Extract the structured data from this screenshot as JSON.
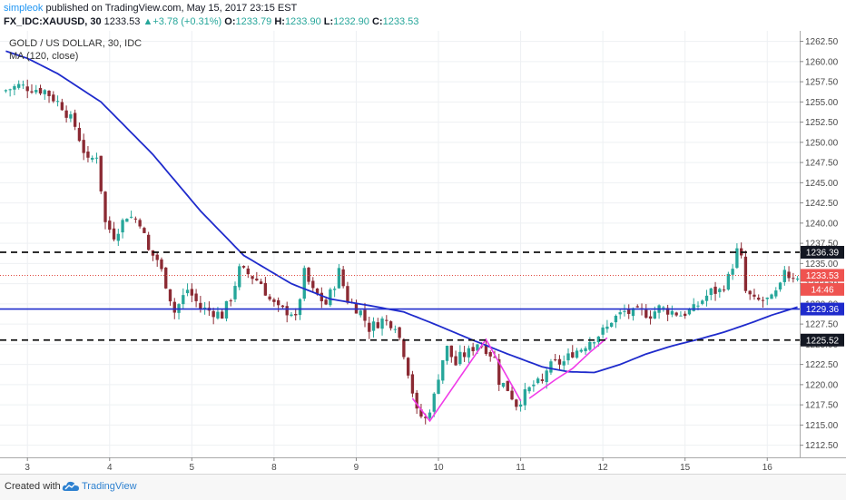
{
  "header": {
    "author": "simpleok",
    "published_text": "published on TradingView.com, May 15, 2017 23:15 EST",
    "symbol": "FX_IDC:XAUUSD, 30",
    "last": "1233.53",
    "change": "+3.78 (+0.31%)",
    "o_label": "O:",
    "o_value": "1233.79",
    "h_label": "H:",
    "h_value": "1233.90",
    "l_label": "L:",
    "l_value": "1232.90",
    "c_label": "C:",
    "c_value": "1233.53"
  },
  "footer": {
    "created_label": "Created with",
    "brand": "TradingView"
  },
  "colors": {
    "up": "#26a69a",
    "down": "#8b2a33",
    "ma": "#1f2bcc",
    "pattern": "#f03ce8",
    "level_price": "#e04a3f",
    "level_pct": "#ef5350",
    "tag_dark": "#131722",
    "tag_blue": "#1f2bcc"
  },
  "chart_data": {
    "type": "candlestick",
    "title": "GOLD / US DOLLAR, 30, IDC",
    "indicator": "MA (120, close)",
    "ylim": [
      1211,
      1263.8
    ],
    "x_ticks": [
      "3",
      "4",
      "5",
      "8",
      "9",
      "10",
      "11",
      "12",
      "15",
      "16"
    ],
    "y_ticks": [
      "1262.50",
      "1260.00",
      "1257.50",
      "1255.00",
      "1252.50",
      "1250.00",
      "1247.50",
      "1245.00",
      "1242.50",
      "1240.00",
      "1237.50",
      "1235.00",
      "1232.50",
      "1230.00",
      "1227.50",
      "1225.00",
      "1222.50",
      "1220.00",
      "1217.50",
      "1215.00",
      "1212.50"
    ],
    "price_path": [
      [
        0,
        1256.3
      ],
      [
        4,
        1257.0
      ],
      [
        10,
        1256.4
      ],
      [
        14,
        1254.5
      ],
      [
        17,
        1252.0
      ],
      [
        20,
        1247.5
      ],
      [
        22,
        1248.5
      ],
      [
        24,
        1240.0
      ],
      [
        26,
        1238.5
      ],
      [
        29,
        1241.0
      ],
      [
        32,
        1240.2
      ],
      [
        34,
        1236.5
      ],
      [
        36,
        1235.5
      ],
      [
        38,
        1232.5
      ],
      [
        40,
        1229.0
      ],
      [
        43,
        1231.8
      ],
      [
        46,
        1229.5
      ],
      [
        49,
        1229.0
      ],
      [
        51,
        1228.6
      ],
      [
        53,
        1230.8
      ],
      [
        55,
        1234.2
      ],
      [
        57,
        1233.7
      ],
      [
        60,
        1232.6
      ],
      [
        62,
        1230.5
      ],
      [
        64,
        1229.3
      ],
      [
        67,
        1229.0
      ],
      [
        68,
        1228.0
      ],
      [
        70,
        1233.8
      ],
      [
        72,
        1231.5
      ],
      [
        75,
        1230.0
      ],
      [
        77,
        1232.5
      ],
      [
        78,
        1234.0
      ],
      [
        80,
        1230.5
      ],
      [
        83,
        1229.0
      ],
      [
        85,
        1227.0
      ],
      [
        88,
        1228.0
      ],
      [
        91,
        1227.5
      ],
      [
        93,
        1224.0
      ],
      [
        94.5,
        1220.5
      ],
      [
        96,
        1216.5
      ],
      [
        98,
        1215.7
      ],
      [
        100,
        1218.5
      ],
      [
        101.5,
        1222.5
      ],
      [
        103,
        1224.5
      ],
      [
        105,
        1222.5
      ],
      [
        106,
        1223.4
      ],
      [
        108,
        1224.0
      ],
      [
        110,
        1225.2
      ],
      [
        112,
        1224.5
      ],
      [
        114,
        1223.2
      ],
      [
        115,
        1220.5
      ],
      [
        117,
        1219.5
      ],
      [
        119,
        1217.6
      ],
      [
        121,
        1218.8
      ],
      [
        123,
        1220.0
      ],
      [
        125,
        1220.2
      ],
      [
        126,
        1221.9
      ],
      [
        128,
        1222.6
      ],
      [
        130,
        1222.8
      ],
      [
        132,
        1224.0
      ],
      [
        134,
        1224.5
      ],
      [
        136,
        1225.5
      ],
      [
        138,
        1226.2
      ],
      [
        140,
        1227.0
      ],
      [
        141,
        1228.0
      ],
      [
        144,
        1229.0
      ],
      [
        146,
        1228.8
      ],
      [
        148,
        1229.0
      ],
      [
        150,
        1228.7
      ],
      [
        152,
        1229.5
      ],
      [
        154,
        1229.2
      ],
      [
        157,
        1228.7
      ],
      [
        160,
        1229.3
      ],
      [
        162,
        1230.5
      ],
      [
        164,
        1231.5
      ],
      [
        166,
        1231.6
      ],
      [
        168,
        1233.2
      ],
      [
        170,
        1236.5
      ],
      [
        171,
        1235.5
      ],
      [
        172,
        1231.5
      ],
      [
        174,
        1230.3
      ],
      [
        176,
        1230.4
      ],
      [
        178,
        1230.5
      ],
      [
        180,
        1232.0
      ],
      [
        181,
        1234.5
      ],
      [
        182,
        1233.5
      ],
      [
        183,
        1233.5
      ]
    ],
    "ma_path": [
      [
        0,
        1261.3
      ],
      [
        5,
        1260.4
      ],
      [
        12,
        1258.5
      ],
      [
        22,
        1255.0
      ],
      [
        34,
        1248.5
      ],
      [
        45,
        1241.5
      ],
      [
        55,
        1236.0
      ],
      [
        66,
        1232.5
      ],
      [
        75,
        1230.6
      ],
      [
        85,
        1229.7
      ],
      [
        92,
        1229.0
      ],
      [
        100,
        1227.3
      ],
      [
        108,
        1225.5
      ],
      [
        116,
        1223.8
      ],
      [
        124,
        1222.2
      ],
      [
        130,
        1221.6
      ],
      [
        136,
        1221.5
      ],
      [
        142,
        1222.5
      ],
      [
        148,
        1223.8
      ],
      [
        154,
        1224.8
      ],
      [
        160,
        1225.6
      ],
      [
        166,
        1226.5
      ],
      [
        172,
        1227.6
      ],
      [
        177,
        1228.6
      ],
      [
        183,
        1229.6
      ]
    ],
    "pattern_lines": [
      [
        [
          94,
          1218.3
        ],
        [
          98,
          1215.5
        ],
        [
          111,
          1225.6
        ],
        [
          119,
          1218.0
        ]
      ],
      [
        [
          121,
          1218.3
        ],
        [
          127,
          1220.6
        ],
        [
          131,
          1222.0
        ],
        [
          135,
          1224.0
        ],
        [
          139,
          1225.8
        ]
      ]
    ],
    "levels": [
      {
        "label": "1236.39",
        "value": 1236.39,
        "style": "dashed-black"
      },
      {
        "label": "1225.52",
        "value": 1225.52,
        "style": "dashed-black"
      },
      {
        "label": "1229.36",
        "value": 1229.36,
        "style": "solid-blue"
      },
      {
        "label": "1233.53",
        "value": 1233.53,
        "style": "dotted-red"
      }
    ],
    "tags": [
      {
        "label": "1236.39",
        "value": 1236.39,
        "style": "dark"
      },
      {
        "label": "1233.53",
        "value": 1233.53,
        "style": "red"
      },
      {
        "label": "14:46",
        "value": 1231.8,
        "style": "red"
      },
      {
        "label": "1229.36",
        "value": 1229.36,
        "style": "blue"
      },
      {
        "label": "1225.52",
        "value": 1225.52,
        "style": "dark"
      }
    ]
  }
}
